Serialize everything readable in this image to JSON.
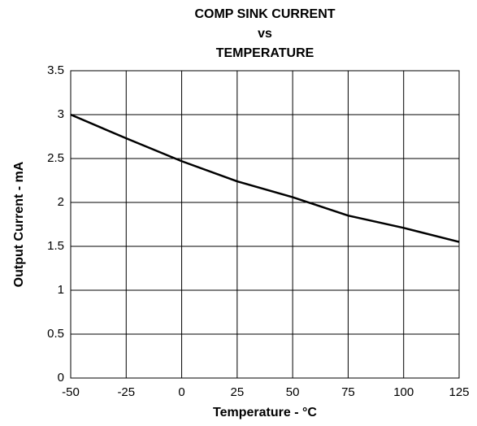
{
  "chart_data": {
    "type": "line",
    "title_lines": [
      "COMP SINK CURRENT",
      "vs",
      "TEMPERATURE"
    ],
    "x_label": "Temperature - °C",
    "y_label": "Output Current - mA",
    "x": [
      -50,
      -25,
      0,
      25,
      50,
      75,
      100,
      125
    ],
    "series": [
      {
        "name": "Output Current",
        "color": "#000000",
        "values": [
          3.0,
          2.73,
          2.47,
          2.24,
          2.06,
          1.85,
          1.71,
          1.55
        ]
      }
    ],
    "xlim": [
      -50,
      125
    ],
    "xticks": [
      -50,
      -25,
      0,
      25,
      50,
      75,
      100,
      125
    ],
    "ylim": [
      0,
      3.5
    ],
    "yticks": [
      0,
      0.5,
      1,
      1.5,
      2,
      2.5,
      3,
      3.5
    ],
    "grid": true
  }
}
